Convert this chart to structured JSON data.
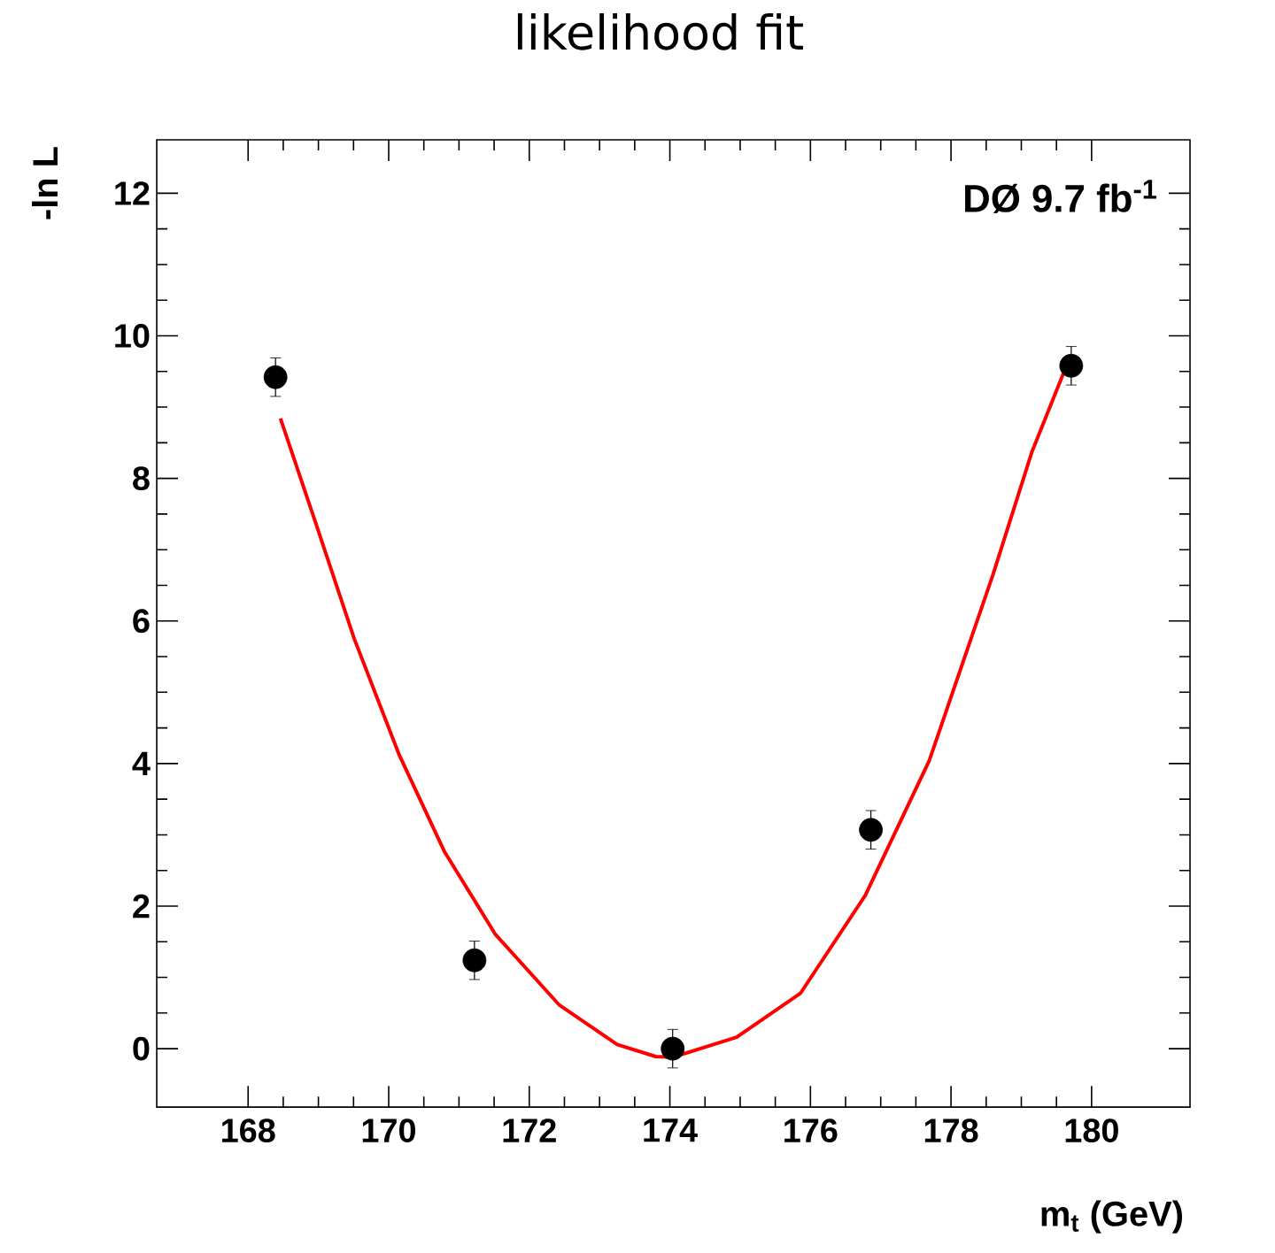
{
  "chart_data": {
    "type": "scatter",
    "title": "likelihood fit",
    "xlabel": "m$_{t}$ (GeV)",
    "ylabel": "-ln L",
    "annotations": [
      "DØ 9.7 fb$^{-1}$"
    ],
    "xlim": [
      166.7,
      181.4
    ],
    "ylim": [
      -0.82,
      12.75
    ],
    "xticks": [
      168,
      170,
      172,
      174,
      176,
      178,
      180
    ],
    "yticks": [
      0,
      2,
      4,
      6,
      8,
      10,
      12
    ],
    "grid": false,
    "series": [
      {
        "marker": "circle",
        "color": "#000000",
        "x": [
          168.39,
          171.22,
          174.04,
          176.86,
          179.71
        ],
        "values": [
          9.42,
          1.24,
          0.0,
          3.07,
          9.58
        ],
        "errors": [
          0.27,
          0.27,
          0.27,
          0.27,
          0.27
        ]
      },
      {
        "type": "line",
        "marker": "none",
        "color": "#ff0000",
        "x": [
          168.46,
          168.96,
          169.51,
          170.15,
          170.79,
          171.52,
          172.43,
          173.25,
          173.8,
          174.04,
          174.95,
          175.86,
          176.78,
          177.69,
          178.6,
          179.15,
          179.63
        ],
        "values": [
          8.84,
          7.38,
          5.75,
          4.12,
          2.77,
          1.6,
          0.61,
          0.06,
          -0.11,
          -0.12,
          0.16,
          0.78,
          2.15,
          4.04,
          6.66,
          8.37,
          9.55
        ]
      }
    ]
  }
}
